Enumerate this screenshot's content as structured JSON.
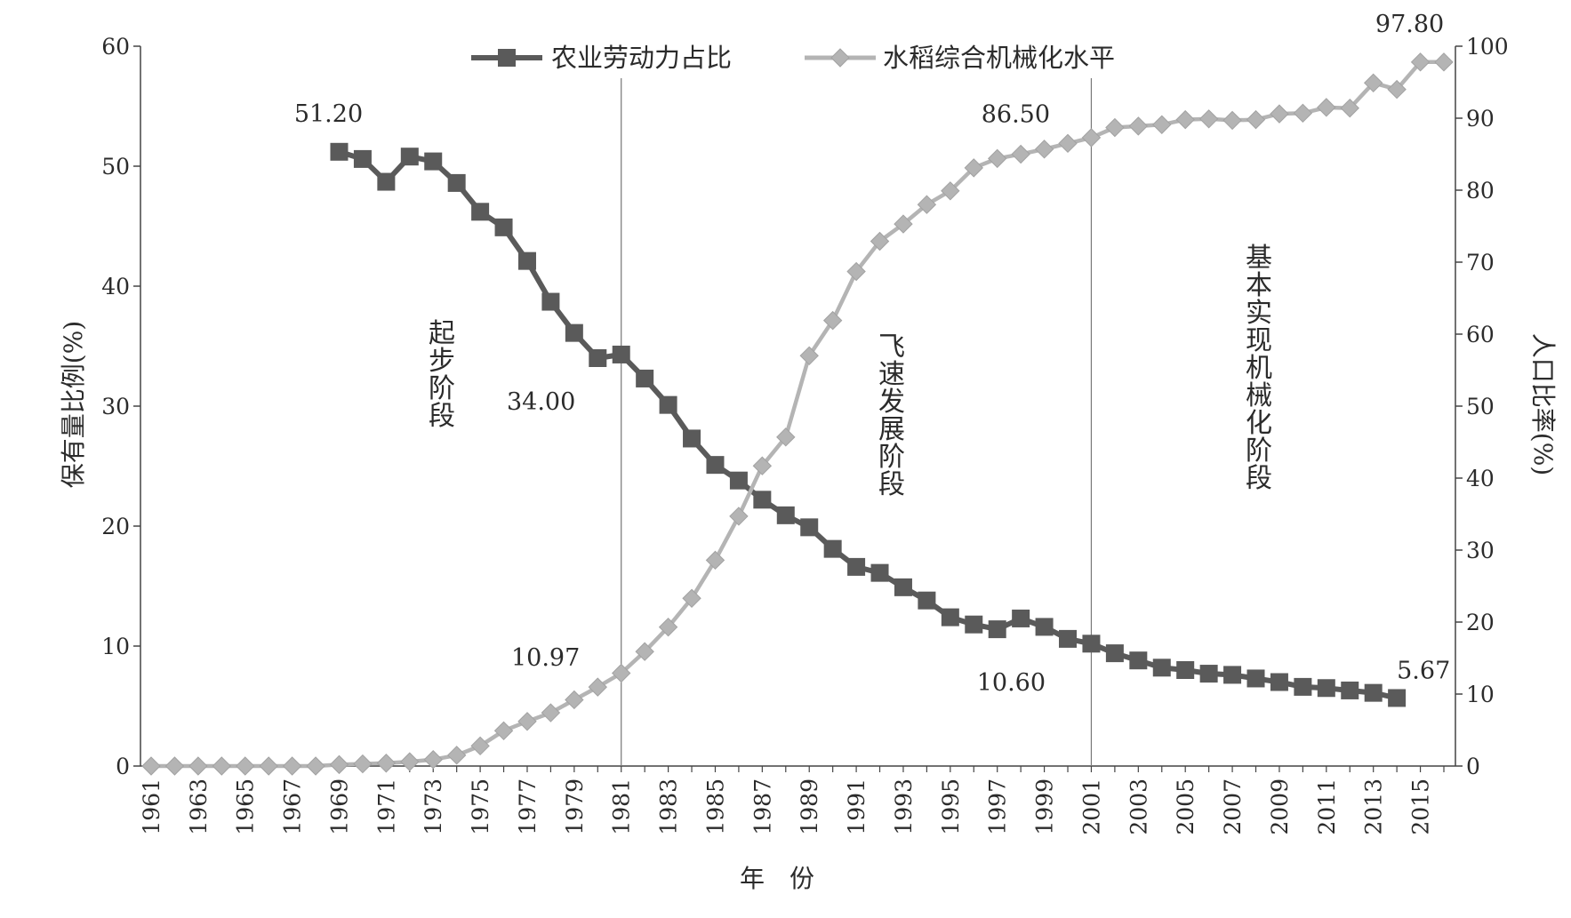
{
  "chart_data": {
    "type": "line",
    "xlabel": "年　份",
    "ylabel_left": "保有量比例(%)",
    "ylabel_right": "人口比率(%)",
    "ylim_left": [
      0,
      60
    ],
    "ylim_right": [
      0,
      100
    ],
    "yticks_left": [
      "0",
      "10",
      "20",
      "30",
      "40",
      "50",
      "60"
    ],
    "yticks_right": [
      "0",
      "10",
      "20",
      "30",
      "40",
      "50",
      "60",
      "70",
      "80",
      "90",
      "100"
    ],
    "x_tick_labels": [
      "1961",
      "1963",
      "1965",
      "1967",
      "1969",
      "1971",
      "1973",
      "1975",
      "1977",
      "1979",
      "1981",
      "1983",
      "1985",
      "1987",
      "1989",
      "1991",
      "1993",
      "1995",
      "1997",
      "1999",
      "2001",
      "2003",
      "2005",
      "2007",
      "2009",
      "2011",
      "2013",
      "2015"
    ],
    "legend_position": "top",
    "grid": false,
    "stage_dividers": [
      1981,
      2001
    ],
    "stages": [
      "起步阶段",
      "飞速发展阶段",
      "基本实现机械化阶段"
    ],
    "series": [
      {
        "name": "农业劳动力占比",
        "axis": "left",
        "marker": "square",
        "color": "#5a5a5a",
        "x": [
          1969,
          1970,
          1971,
          1972,
          1973,
          1974,
          1975,
          1976,
          1977,
          1978,
          1979,
          1980,
          1981,
          1982,
          1983,
          1984,
          1985,
          1986,
          1987,
          1988,
          1989,
          1990,
          1991,
          1992,
          1993,
          1994,
          1995,
          1996,
          1997,
          1998,
          1999,
          2000,
          2001,
          2002,
          2003,
          2004,
          2005,
          2006,
          2007,
          2008,
          2009,
          2010,
          2011,
          2012,
          2013,
          2014
        ],
        "values": [
          51.2,
          50.6,
          48.7,
          50.8,
          50.4,
          48.6,
          46.2,
          44.9,
          42.1,
          38.7,
          36.1,
          34.0,
          34.3,
          32.3,
          30.1,
          27.3,
          25.1,
          23.8,
          22.2,
          20.9,
          19.9,
          18.1,
          16.6,
          16.1,
          14.9,
          13.8,
          12.4,
          11.8,
          11.4,
          12.3,
          11.6,
          10.6,
          10.2,
          9.4,
          8.8,
          8.2,
          8.0,
          7.7,
          7.6,
          7.3,
          7.0,
          6.6,
          6.5,
          6.3,
          6.1,
          5.67
        ]
      },
      {
        "name": "水稻综合机械化水平",
        "axis": "right",
        "marker": "diamond",
        "color": "#b4b4b4",
        "x": [
          1961,
          1962,
          1963,
          1964,
          1965,
          1966,
          1967,
          1968,
          1969,
          1970,
          1971,
          1972,
          1973,
          1974,
          1975,
          1976,
          1977,
          1978,
          1979,
          1980,
          1981,
          1982,
          1983,
          1984,
          1985,
          1986,
          1987,
          1988,
          1989,
          1990,
          1991,
          1992,
          1993,
          1994,
          1995,
          1996,
          1997,
          1998,
          1999,
          2000,
          2001,
          2002,
          2003,
          2004,
          2005,
          2006,
          2007,
          2008,
          2009,
          2010,
          2011,
          2012,
          2013,
          2014,
          2015,
          2016
        ],
        "values": [
          0,
          0,
          0,
          0,
          0,
          0,
          0,
          0,
          0.2,
          0.3,
          0.4,
          0.6,
          0.9,
          1.5,
          2.8,
          4.9,
          6.2,
          7.4,
          9.2,
          10.97,
          12.9,
          15.9,
          19.3,
          23.3,
          28.6,
          34.7,
          41.7,
          45.7,
          57.0,
          61.9,
          68.7,
          72.9,
          75.3,
          78.0,
          79.9,
          83.1,
          84.4,
          85.0,
          85.7,
          86.5,
          87.3,
          88.7,
          88.9,
          89.1,
          89.8,
          89.9,
          89.7,
          89.8,
          90.6,
          90.7,
          91.5,
          91.4,
          94.9,
          94.0,
          97.8,
          97.8
        ]
      }
    ],
    "annotations": [
      {
        "text": "51.20",
        "x": 1969,
        "y": 51.2,
        "axis": "left",
        "pos": "above"
      },
      {
        "text": "34.00",
        "x": 1980,
        "y": 34.0,
        "axis": "left",
        "pos": "below-left"
      },
      {
        "text": "10.97",
        "x": 1980,
        "y": 10.97,
        "axis": "right",
        "pos": "above-left"
      },
      {
        "text": "86.50",
        "x": 2000,
        "y": 86.5,
        "axis": "right",
        "pos": "above-left"
      },
      {
        "text": "10.60",
        "x": 2000,
        "y": 10.6,
        "axis": "left",
        "pos": "below-left"
      },
      {
        "text": "5.67",
        "x": 2014,
        "y": 5.67,
        "axis": "left",
        "pos": "above-right"
      },
      {
        "text": "97.80",
        "x": 2015,
        "y": 97.8,
        "axis": "right",
        "pos": "above"
      }
    ]
  }
}
